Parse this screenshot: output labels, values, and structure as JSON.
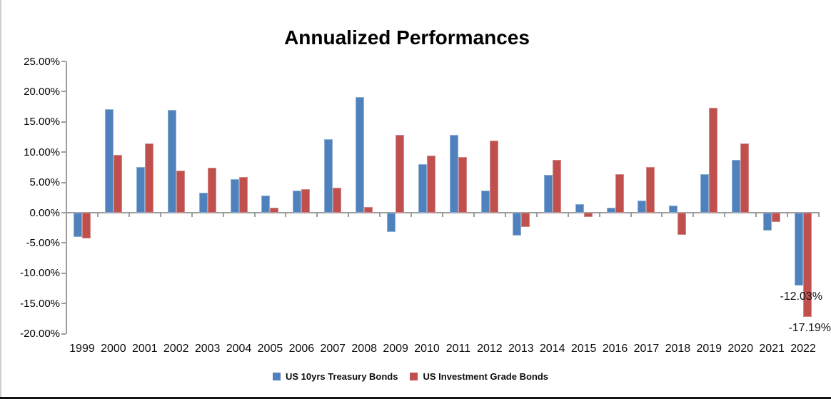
{
  "window": {
    "left_border_color": "#cfcfcf",
    "bottom_bar_color": "#141414"
  },
  "chart_data": {
    "type": "bar",
    "title": "Annualized Performances",
    "categories": [
      "1999",
      "2000",
      "2001",
      "2002",
      "2003",
      "2004",
      "2005",
      "2006",
      "2007",
      "2008",
      "2009",
      "2010",
      "2011",
      "2012",
      "2013",
      "2014",
      "2015",
      "2016",
      "2017",
      "2018",
      "2019",
      "2020",
      "2021",
      "2022"
    ],
    "series": [
      {
        "name": "US 10yrs Treasury Bonds",
        "color": "#4f81bd",
        "border_color": "#8fafd4",
        "values": [
          -4.0,
          17.1,
          7.6,
          17.0,
          3.3,
          5.5,
          2.8,
          3.6,
          12.1,
          19.1,
          -3.2,
          8.0,
          12.9,
          3.7,
          -3.8,
          6.2,
          1.4,
          0.8,
          2.0,
          1.2,
          6.4,
          8.7,
          -3.0,
          -12.03
        ]
      },
      {
        "name": "US Investment Grade Bonds",
        "color": "#c0504d",
        "border_color": "#d28b89",
        "values": [
          -4.2,
          9.6,
          11.4,
          7.0,
          7.4,
          5.9,
          0.8,
          3.9,
          4.1,
          0.9,
          12.9,
          9.4,
          9.2,
          11.9,
          -2.4,
          8.7,
          -0.7,
          6.4,
          7.5,
          -3.6,
          17.3,
          11.4,
          -1.5,
          -17.19
        ]
      }
    ],
    "y_axis": {
      "tick_labels": [
        "25.00%",
        "20.00%",
        "15.00%",
        "10.00%",
        "5.00%",
        "0.00%",
        "-5.00%",
        "-10.00%",
        "-15.00%",
        "-20.00%"
      ],
      "tick_values": [
        25,
        20,
        15,
        10,
        5,
        0,
        -5,
        -10,
        -15,
        -20
      ],
      "min": -20,
      "max": 25,
      "step": 5,
      "format": "percent"
    },
    "xlabel": "",
    "ylabel": "",
    "grid": false,
    "legend_position": "bottom",
    "data_labels": [
      {
        "series": 0,
        "category": "2022",
        "text": "-12.03%"
      },
      {
        "series": 1,
        "category": "2022",
        "text": "-17.19%"
      }
    ]
  }
}
